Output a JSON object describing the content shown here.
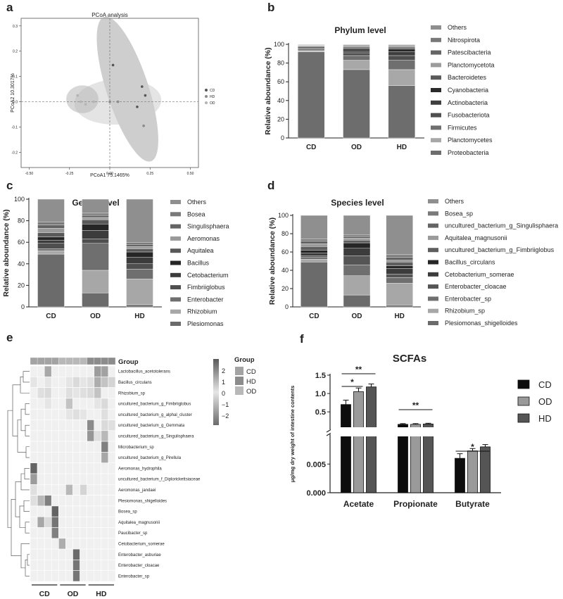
{
  "panels": {
    "a": "a",
    "b": "b",
    "c": "c",
    "d": "d",
    "e": "e",
    "f": "f"
  },
  "chart_data": [
    {
      "panel": "a",
      "type": "scatter",
      "title": "PCoA analysis",
      "xlabel": "PCoA1 75.1465%",
      "ylabel": "PCoA2 10.3017%",
      "xlim": [
        -0.55,
        0.55
      ],
      "ylim": [
        -0.26,
        0.33
      ],
      "x_ticks": [
        "-0.50",
        "-0.25",
        "0.00",
        "0.25",
        "0.50"
      ],
      "x_tick_values": [
        -0.5,
        -0.25,
        0,
        0.25,
        0.5
      ],
      "y_ticks": [
        "0.3",
        "0.2",
        "0.1",
        "0.0",
        "-0.1",
        "-0.2"
      ],
      "y_tick_values": [
        0.3,
        0.2,
        0.1,
        0.0,
        -0.1,
        -0.2
      ],
      "legend": [
        "CD",
        "HD",
        "OD"
      ],
      "legend_position": "right",
      "series": [
        {
          "name": "CD",
          "color": "#555555",
          "points": [
            [
              0.02,
              0.145
            ],
            [
              0.2,
              0.06
            ],
            [
              0.22,
              0.025
            ],
            [
              0.17,
              -0.02
            ]
          ]
        },
        {
          "name": "HD",
          "color": "#8a8a8a",
          "points": [
            [
              0.0,
              0.0
            ],
            [
              0.05,
              0.0
            ],
            [
              0.21,
              -0.095
            ]
          ]
        },
        {
          "name": "OD",
          "color": "#b3b3b3",
          "points": [
            [
              -0.2,
              0.025
            ],
            [
              -0.18,
              0.0
            ],
            [
              -0.15,
              -0.01
            ],
            [
              -0.1,
              0.0
            ]
          ]
        }
      ],
      "ellipses": [
        {
          "group": "CD",
          "cx": 0.11,
          "cy": 0.05,
          "rx": 0.13,
          "ry": 0.3,
          "rotate": -18,
          "fill": "#a6a6a6"
        },
        {
          "group": "HD",
          "cx": 0.05,
          "cy": 0.0,
          "rx": 0.27,
          "ry": 0.09,
          "rotate": -3,
          "fill": "#cdcdcd"
        },
        {
          "group": "OD",
          "cx": -0.17,
          "cy": 0.01,
          "rx": 0.1,
          "ry": 0.055,
          "rotate": 0,
          "fill": "#b7b7b7"
        }
      ]
    },
    {
      "panel": "b",
      "type": "bar",
      "stacked": true,
      "title": "Phylum level",
      "ylabel": "Relative aboundance (%)",
      "categories": [
        "CD",
        "OD",
        "HD"
      ],
      "ylim": [
        0,
        100
      ],
      "y_ticks": [
        "0",
        "20",
        "40",
        "60",
        "80",
        "100"
      ],
      "series": [
        {
          "name": "Proteobacteria",
          "color": "#6d6d6d",
          "values": [
            92,
            73,
            56
          ]
        },
        {
          "name": "Planctomycetes",
          "color": "#a8a8a8",
          "values": [
            1,
            10,
            17
          ]
        },
        {
          "name": "Firmicutes",
          "color": "#6f6f6f",
          "values": [
            1,
            5,
            10
          ]
        },
        {
          "name": "Fusobacteriota",
          "color": "#4f4f4f",
          "values": [
            1,
            3,
            5
          ]
        },
        {
          "name": "Actinobacteria",
          "color": "#3e3e3e",
          "values": [
            1,
            2,
            4
          ]
        },
        {
          "name": "Cyanobacteria",
          "color": "#2a2a2a",
          "values": [
            1,
            2,
            3
          ]
        },
        {
          "name": "Bacteroidetes",
          "color": "#5a5a5a",
          "values": [
            1,
            2,
            2
          ]
        },
        {
          "name": "Planctomycetota",
          "color": "#9c9c9c",
          "values": [
            0.5,
            1,
            1
          ]
        },
        {
          "name": "Patescibacteria",
          "color": "#656565",
          "values": [
            0.5,
            1,
            1
          ]
        },
        {
          "name": "Nitrospirota",
          "color": "#787878",
          "values": [
            0.5,
            0.5,
            0.5
          ]
        },
        {
          "name": "Others",
          "color": "#8e8e8e",
          "values": [
            0.5,
            0.5,
            0.5
          ]
        }
      ],
      "legend_order": [
        "Others",
        "Nitrospirota",
        "Patescibacteria",
        "Planctomycetota",
        "Bacteroidetes",
        "Cyanobacteria",
        "Actinobacteria",
        "Fusobacteriota",
        "Firmicutes",
        "Planctomycetes",
        "Proteobacteria"
      ]
    },
    {
      "panel": "c",
      "type": "bar",
      "stacked": true,
      "title": "Genus level",
      "ylabel": "Relative aboundance (%)",
      "categories": [
        "CD",
        "OD",
        "HD"
      ],
      "ylim": [
        0,
        100
      ],
      "y_ticks": [
        "0",
        "20",
        "40",
        "60",
        "80",
        "100"
      ],
      "series": [
        {
          "name": "Plesiomonas",
          "color": "#6b6b6b",
          "values": [
            49,
            13,
            2
          ]
        },
        {
          "name": "Rhizobium",
          "color": "#a7a7a7",
          "values": [
            3,
            21,
            24
          ]
        },
        {
          "name": "Enterobacter",
          "color": "#6f6f6f",
          "values": [
            2,
            25,
            9
          ]
        },
        {
          "name": "Fimbriiglobus",
          "color": "#4f4f4f",
          "values": [
            5,
            4,
            5
          ]
        },
        {
          "name": "Cetobacterium",
          "color": "#3c3c3c",
          "values": [
            3,
            8,
            6
          ]
        },
        {
          "name": "Bacillus",
          "color": "#262626",
          "values": [
            3,
            6,
            5
          ]
        },
        {
          "name": "Aquitalea",
          "color": "#595959",
          "values": [
            4,
            4,
            3
          ]
        },
        {
          "name": "Aeromonas",
          "color": "#9a9a9a",
          "values": [
            4,
            2,
            2
          ]
        },
        {
          "name": "Singulisphaera",
          "color": "#646464",
          "values": [
            3,
            2,
            2
          ]
        },
        {
          "name": "Bosea",
          "color": "#7a7a7a",
          "values": [
            3,
            2,
            2
          ]
        },
        {
          "name": "Others",
          "color": "#8f8f8f",
          "values": [
            21,
            13,
            40
          ]
        }
      ],
      "legend_order": [
        "Others",
        "Bosea",
        "Singulisphaera",
        "Aeromonas",
        "Aquitalea",
        "Bacillus",
        "Cetobacterium",
        "Fimbriiglobus",
        "Enterobacter",
        "Rhizobium",
        "Plesiomonas"
      ]
    },
    {
      "panel": "d",
      "type": "bar",
      "stacked": true,
      "title": "Species level",
      "ylabel": "Relative aboundance (%)",
      "categories": [
        "CD",
        "OD",
        "HD"
      ],
      "ylim": [
        0,
        100
      ],
      "y_ticks": [
        "0",
        "20",
        "40",
        "60",
        "80",
        "100"
      ],
      "series": [
        {
          "name": "Plesiomonas_shigelloides",
          "color": "#6b6b6b",
          "values": [
            49,
            13,
            2
          ]
        },
        {
          "name": "Rhizobium_sp",
          "color": "#a7a7a7",
          "values": [
            3,
            21,
            24
          ]
        },
        {
          "name": "Enterobacter_sp",
          "color": "#6f6f6f",
          "values": [
            2,
            12,
            6
          ]
        },
        {
          "name": "Enterobacter_cloacae",
          "color": "#555555",
          "values": [
            2,
            10,
            4
          ]
        },
        {
          "name": "Cetobacterium_somerae",
          "color": "#3c3c3c",
          "values": [
            3,
            8,
            6
          ]
        },
        {
          "name": "Bacillus_circulans",
          "color": "#262626",
          "values": [
            3,
            6,
            3
          ]
        },
        {
          "name": "uncultured_bacterium_g_Fimbriiglobus",
          "color": "#5e5e5e",
          "values": [
            4,
            3,
            4
          ]
        },
        {
          "name": "Aquitalea_magnusonii",
          "color": "#9a9a9a",
          "values": [
            3,
            2,
            2
          ]
        },
        {
          "name": "uncultured_bacterium_g_Singulisphaera",
          "color": "#646464",
          "values": [
            3,
            2,
            3
          ]
        },
        {
          "name": "Bosea_sp",
          "color": "#7a7a7a",
          "values": [
            2,
            2,
            3
          ]
        },
        {
          "name": "Others",
          "color": "#8f8f8f",
          "values": [
            26,
            21,
            43
          ]
        }
      ],
      "legend_order": [
        "Others",
        "Bosea_sp",
        "uncultured_bacterium_g_Singulisphaera",
        "Aquitalea_magnusonii",
        "uncultured_bacterium_g_Fimbriiglobus",
        "Bacillus_circulans",
        "Cetobacterium_somerae",
        "Enterobacter_cloacae",
        "Enterobacter_sp",
        "Rhizobium_sp",
        "Plesiomonas_shigelloides"
      ]
    },
    {
      "panel": "e",
      "type": "heatmap",
      "group_row_label": "Group",
      "columns": [
        "CD",
        "CD",
        "CD",
        "CD",
        "OD",
        "OD",
        "OD",
        "OD",
        "HD",
        "HD",
        "HD",
        "HD"
      ],
      "column_groups": [
        "CD",
        "OD",
        "HD"
      ],
      "rows": [
        "Lactobacillus_acetotolerans",
        "Bacillus_circulans",
        "Rhizobium_sp",
        "uncultured_bacterium_g_Fimbriiglobus",
        "uncultured_bacterium_g_alphal_cluster",
        "uncultured_bacterium_g_Gemmata",
        "uncultured_bacterium_g_Singulisphaera",
        "Microbacterium_sp",
        "uncultured_bacterium_g_Pirellula",
        "Aeromonas_hydrophila",
        "uncultured_bacterium_f_Diplorickettsiaceae",
        "Aeromonas_jandaei",
        "Plesiomonas_shigelloides",
        "Bosea_sp",
        "Aquitalea_magnusonii",
        "Paucibacter_sp",
        "Cetobacterium_somerae",
        "Enterobacter_asburiae",
        "Enterobacter_cloacae",
        "Enterobacter_sp"
      ],
      "values": [
        [
          0.0,
          0.0,
          1.3,
          0.0,
          0.0,
          0.0,
          0.0,
          0.0,
          0.0,
          1.5,
          1.4,
          0.0
        ],
        [
          0.2,
          0.0,
          0.2,
          0.0,
          0.0,
          0.2,
          0.4,
          0.2,
          0.3,
          1.2,
          0.8,
          0.5
        ],
        [
          0.0,
          0.3,
          0.4,
          0.0,
          0.0,
          0.3,
          0.2,
          0.3,
          0.4,
          0.8,
          0.0,
          0.0
        ],
        [
          0.0,
          0.0,
          0.2,
          0.0,
          0.0,
          0.8,
          0.0,
          0.0,
          0.0,
          0.2,
          0.4,
          0.0
        ],
        [
          0.0,
          0.0,
          0.0,
          0.0,
          0.0,
          0.2,
          0.3,
          0.2,
          0.0,
          0.0,
          0.3,
          0.0
        ],
        [
          0.0,
          0.0,
          0.0,
          0.0,
          0.0,
          0.0,
          0.0,
          0.0,
          1.8,
          0.0,
          0.4,
          0.3
        ],
        [
          0.0,
          0.0,
          0.0,
          0.0,
          0.0,
          0.0,
          0.0,
          0.0,
          1.6,
          0.3,
          1.0,
          0.0
        ],
        [
          0.0,
          0.0,
          0.0,
          0.0,
          0.0,
          0.0,
          0.0,
          0.0,
          0.0,
          0.0,
          2.0,
          0.0
        ],
        [
          0.0,
          0.0,
          0.0,
          0.0,
          0.0,
          0.0,
          0.0,
          0.0,
          0.0,
          0.0,
          1.3,
          0.0
        ],
        [
          2.5,
          0.0,
          0.0,
          0.0,
          0.0,
          0.0,
          0.0,
          0.0,
          0.0,
          0.0,
          0.0,
          0.0
        ],
        [
          1.5,
          0.0,
          0.0,
          0.0,
          0.0,
          0.0,
          0.0,
          0.0,
          0.0,
          0.0,
          0.0,
          0.0
        ],
        [
          0.3,
          0.0,
          0.0,
          0.0,
          0.0,
          1.0,
          0.0,
          0.5,
          0.0,
          0.0,
          0.0,
          0.0
        ],
        [
          0.3,
          1.0,
          2.0,
          0.0,
          0.0,
          0.0,
          0.0,
          0.0,
          0.0,
          0.0,
          0.0,
          0.0
        ],
        [
          0.0,
          0.0,
          0.0,
          2.5,
          0.0,
          0.0,
          0.0,
          0.0,
          0.0,
          0.0,
          0.0,
          0.0
        ],
        [
          0.0,
          1.3,
          0.4,
          2.2,
          0.0,
          0.0,
          0.0,
          0.0,
          0.0,
          0.0,
          0.0,
          0.0
        ],
        [
          0.0,
          0.0,
          0.0,
          2.0,
          0.0,
          0.0,
          0.0,
          0.0,
          0.0,
          0.0,
          0.0,
          0.0
        ],
        [
          0.0,
          0.0,
          0.0,
          0.0,
          1.2,
          0.0,
          0.0,
          0.0,
          0.0,
          0.0,
          0.0,
          0.0
        ],
        [
          0.0,
          0.0,
          0.0,
          0.0,
          0.0,
          0.0,
          2.4,
          0.0,
          0.0,
          0.0,
          0.0,
          0.0
        ],
        [
          0.0,
          0.0,
          0.0,
          0.0,
          0.0,
          0.0,
          2.2,
          0.0,
          0.0,
          0.0,
          0.0,
          0.0
        ],
        [
          0.0,
          0.0,
          0.0,
          0.0,
          0.0,
          0.0,
          2.2,
          0.0,
          0.0,
          0.0,
          0.0,
          0.0
        ]
      ],
      "colorbar_ticks": [
        "2",
        "1",
        "0",
        "−1",
        "−2"
      ],
      "colorbar_range": [
        -2.5,
        2.5
      ],
      "group_legend_title": "Group",
      "group_legend": [
        {
          "name": "CD",
          "color": "#a3a3a3"
        },
        {
          "name": "HD",
          "color": "#8c8c8c"
        },
        {
          "name": "OD",
          "color": "#b8b8b8"
        }
      ]
    },
    {
      "panel": "f",
      "type": "bar",
      "title": "SCFAs",
      "ylabel": "μg/mg dry weight of intestine contents",
      "categories": [
        "Acetate",
        "Propionate",
        "Butyrate"
      ],
      "axis_break": true,
      "y_ticks_upper": [
        "0.5",
        "1.0",
        "1.5"
      ],
      "y_ticks_lower": [
        "0.000",
        "0.005"
      ],
      "ylim_upper": [
        0.1,
        1.5
      ],
      "ylim_lower": [
        0,
        0.0097
      ],
      "series": [
        {
          "name": "CD",
          "color": "#0d0d0d",
          "values": [
            0.7,
            0.16,
            0.006
          ],
          "errors": [
            0.12,
            0.02,
            0.0008
          ]
        },
        {
          "name": "OD",
          "color": "#9a9a9a",
          "values": [
            1.05,
            0.16,
            0.0073
          ],
          "errors": [
            0.1,
            0.02,
            0.0004
          ]
        },
        {
          "name": "HD",
          "color": "#555555",
          "values": [
            1.18,
            0.17,
            0.008
          ],
          "errors": [
            0.08,
            0.02,
            0.0004
          ]
        }
      ],
      "significance": [
        {
          "label": "*",
          "category": "Acetate",
          "from": "CD",
          "to": "OD"
        },
        {
          "label": "**",
          "category": "Acetate",
          "from": "CD",
          "to": "HD"
        },
        {
          "label": "**",
          "category": "Propionate",
          "from": "CD",
          "to": "HD"
        },
        {
          "label": "*",
          "category": "Butyrate",
          "from": "CD",
          "to": "HD"
        }
      ],
      "legend_position": "right"
    }
  ]
}
